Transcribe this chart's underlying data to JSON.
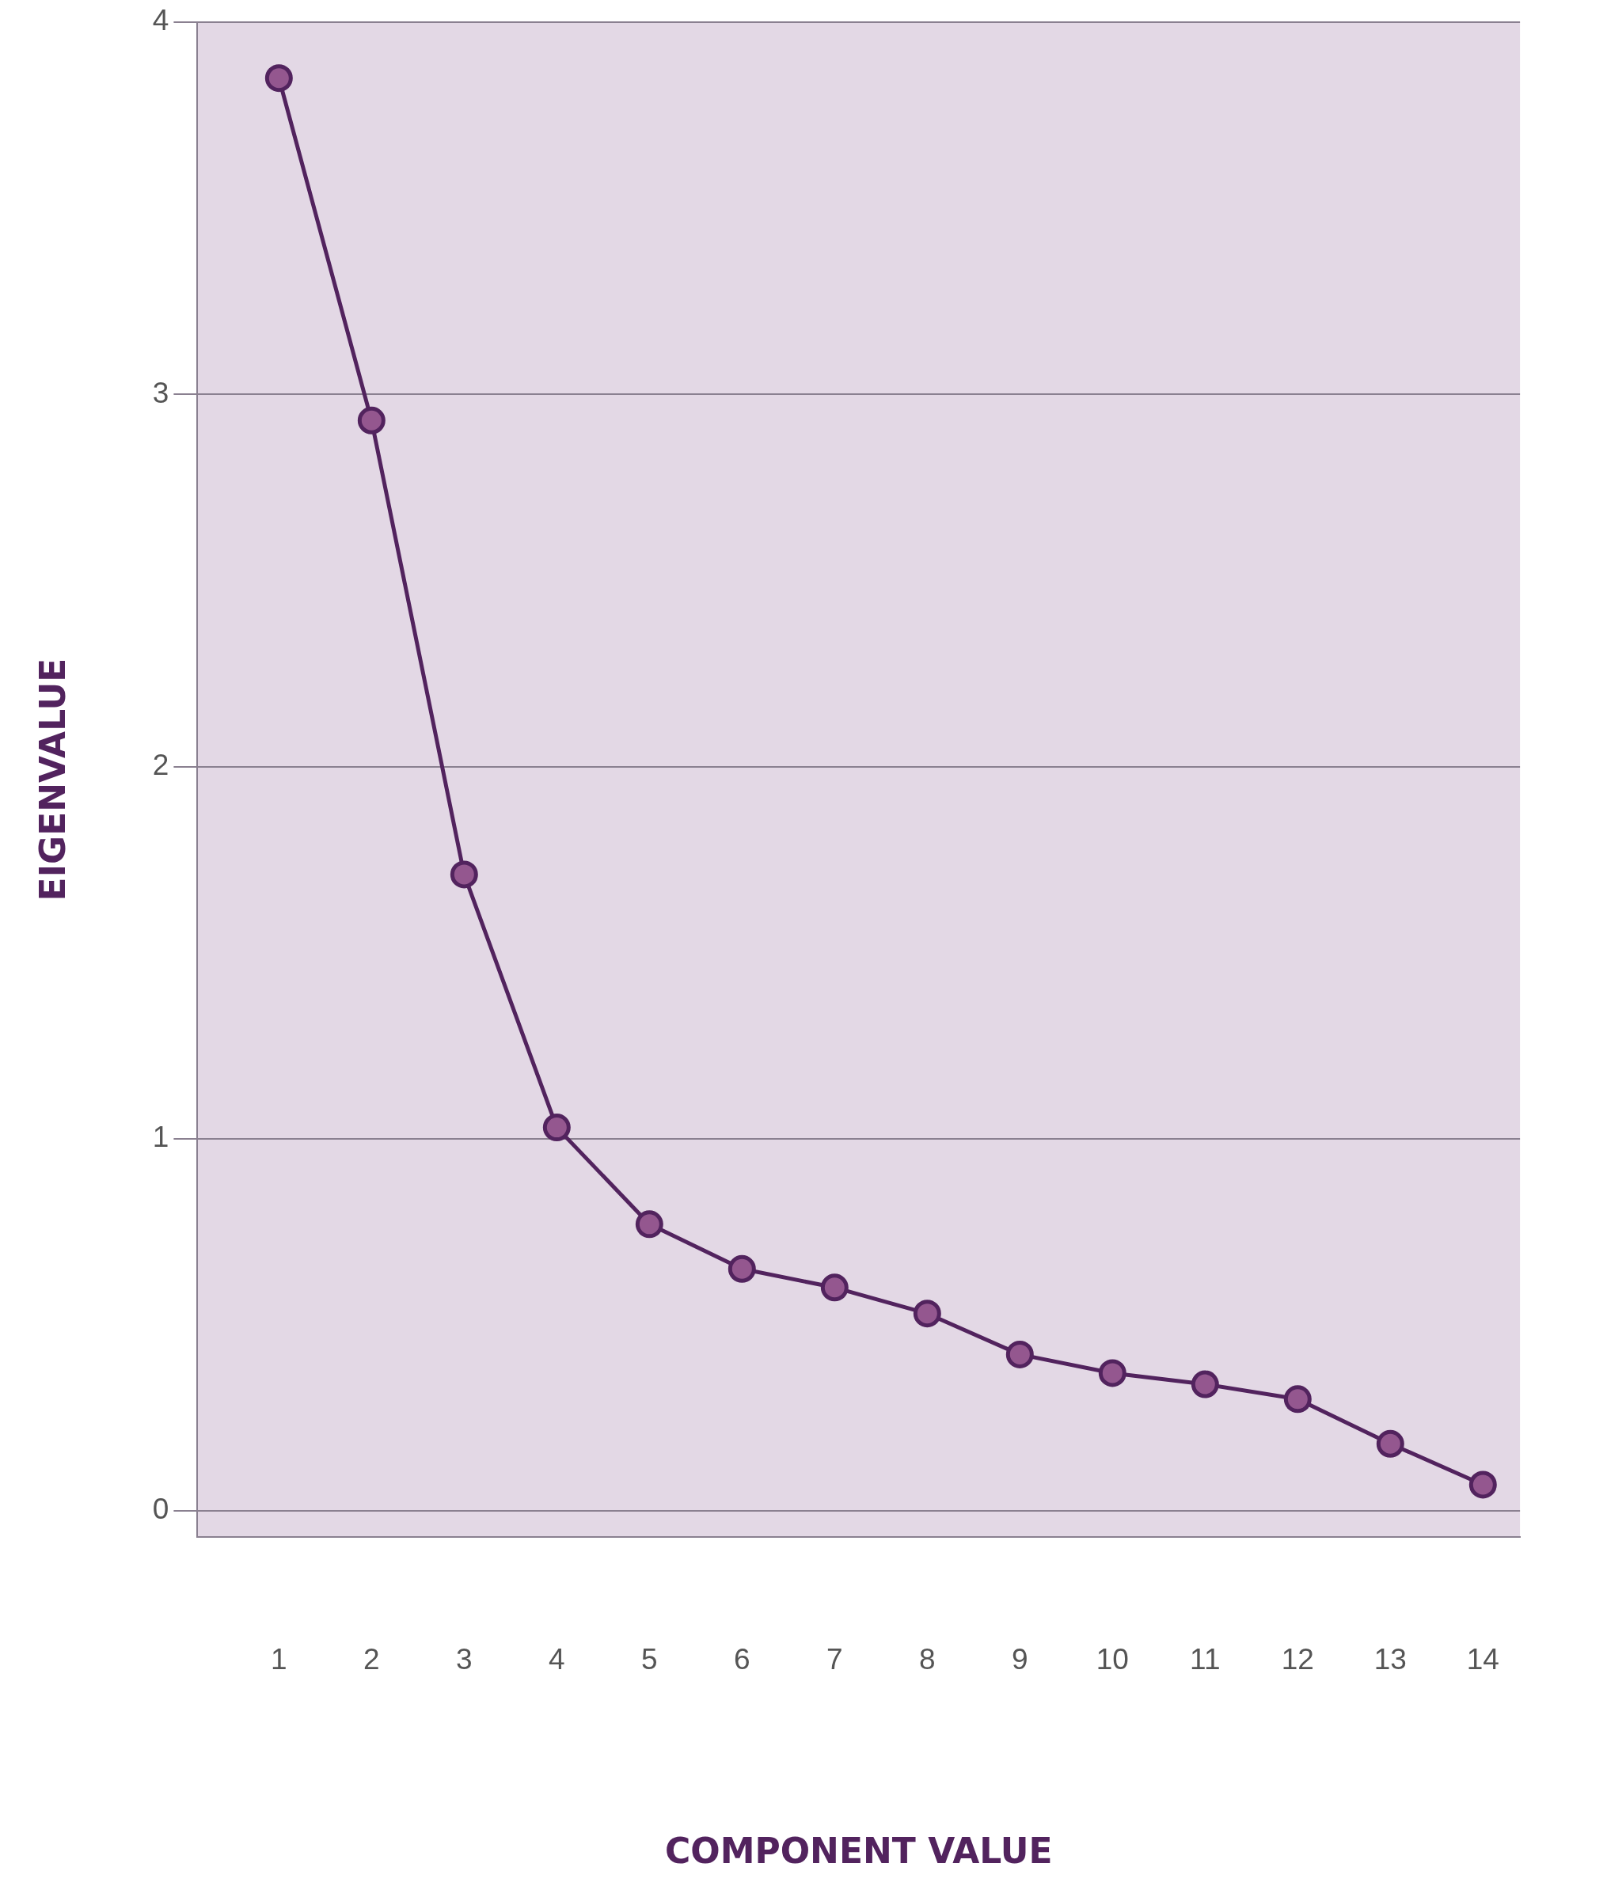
{
  "chart_data": {
    "type": "line",
    "xlabel": "COMPONENT VALUE",
    "ylabel": "EIGENVALUE",
    "x": [
      1,
      2,
      3,
      4,
      5,
      6,
      7,
      8,
      9,
      10,
      11,
      12,
      13,
      14
    ],
    "series": [
      {
        "color": "#52235e",
        "values": [
          3.85,
          2.93,
          1.71,
          1.03,
          0.77,
          0.65,
          0.6,
          0.53,
          0.42,
          0.37,
          0.34,
          0.3,
          0.18,
          0.07
        ]
      }
    ],
    "xlim": [
      0.12,
      14.4
    ],
    "xticks": [
      1,
      2,
      3,
      4,
      5,
      6,
      7,
      8,
      9,
      10,
      11,
      12,
      13,
      14
    ],
    "ylim": [
      -0.07,
      4
    ],
    "yticks": [
      0,
      1,
      2,
      3,
      4
    ],
    "grid": "y",
    "legend": false,
    "marker": "circle",
    "line_style": "solid"
  }
}
